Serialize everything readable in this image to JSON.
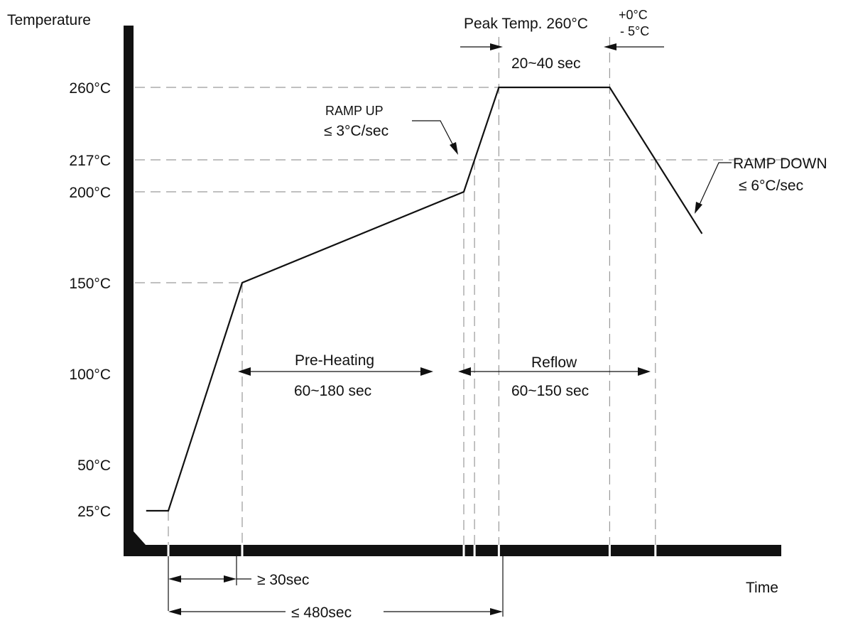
{
  "chart_data": {
    "type": "line",
    "title": "",
    "ylabel": "Temperature",
    "xlabel": "Time",
    "y_ticks": [
      {
        "value": 260,
        "label": "260°C"
      },
      {
        "value": 217,
        "label": "217°C"
      },
      {
        "value": 200,
        "label": "200°C"
      },
      {
        "value": 150,
        "label": "150°C"
      },
      {
        "value": 100,
        "label": "100°C"
      },
      {
        "value": 50,
        "label": "50°C"
      },
      {
        "value": 25,
        "label": "25°C"
      }
    ],
    "ylim": [
      0,
      300
    ],
    "series": [
      {
        "points": [
          {
            "t": -12,
            "temp": 25
          },
          {
            "t": 0,
            "temp": 25
          },
          {
            "t": 40,
            "temp": 150
          },
          {
            "t": 160,
            "temp": 200
          },
          {
            "t": 179,
            "temp": 260
          },
          {
            "t": 239,
            "temp": 260
          },
          {
            "t": 289,
            "temp": 177
          }
        ]
      }
    ],
    "annotations": {
      "peak_label": "Peak Temp. 260°C",
      "peak_tol_plus": "+0°C",
      "peak_tol_minus": "- 5°C",
      "peak_duration": "20~40 sec",
      "ramp_up_title": "RAMP UP",
      "ramp_up_rate": "≤ 3°C/sec",
      "ramp_down_title": "RAMP DOWN",
      "ramp_down_rate": "≤ 6°C/sec",
      "preheat_title": "Pre-Heating",
      "preheat_duration": "60~180 sec",
      "reflow_title": "Reflow",
      "reflow_duration": "60~150 sec",
      "min_initial": "≥ 30sec",
      "max_total": "≤ 480sec"
    }
  }
}
